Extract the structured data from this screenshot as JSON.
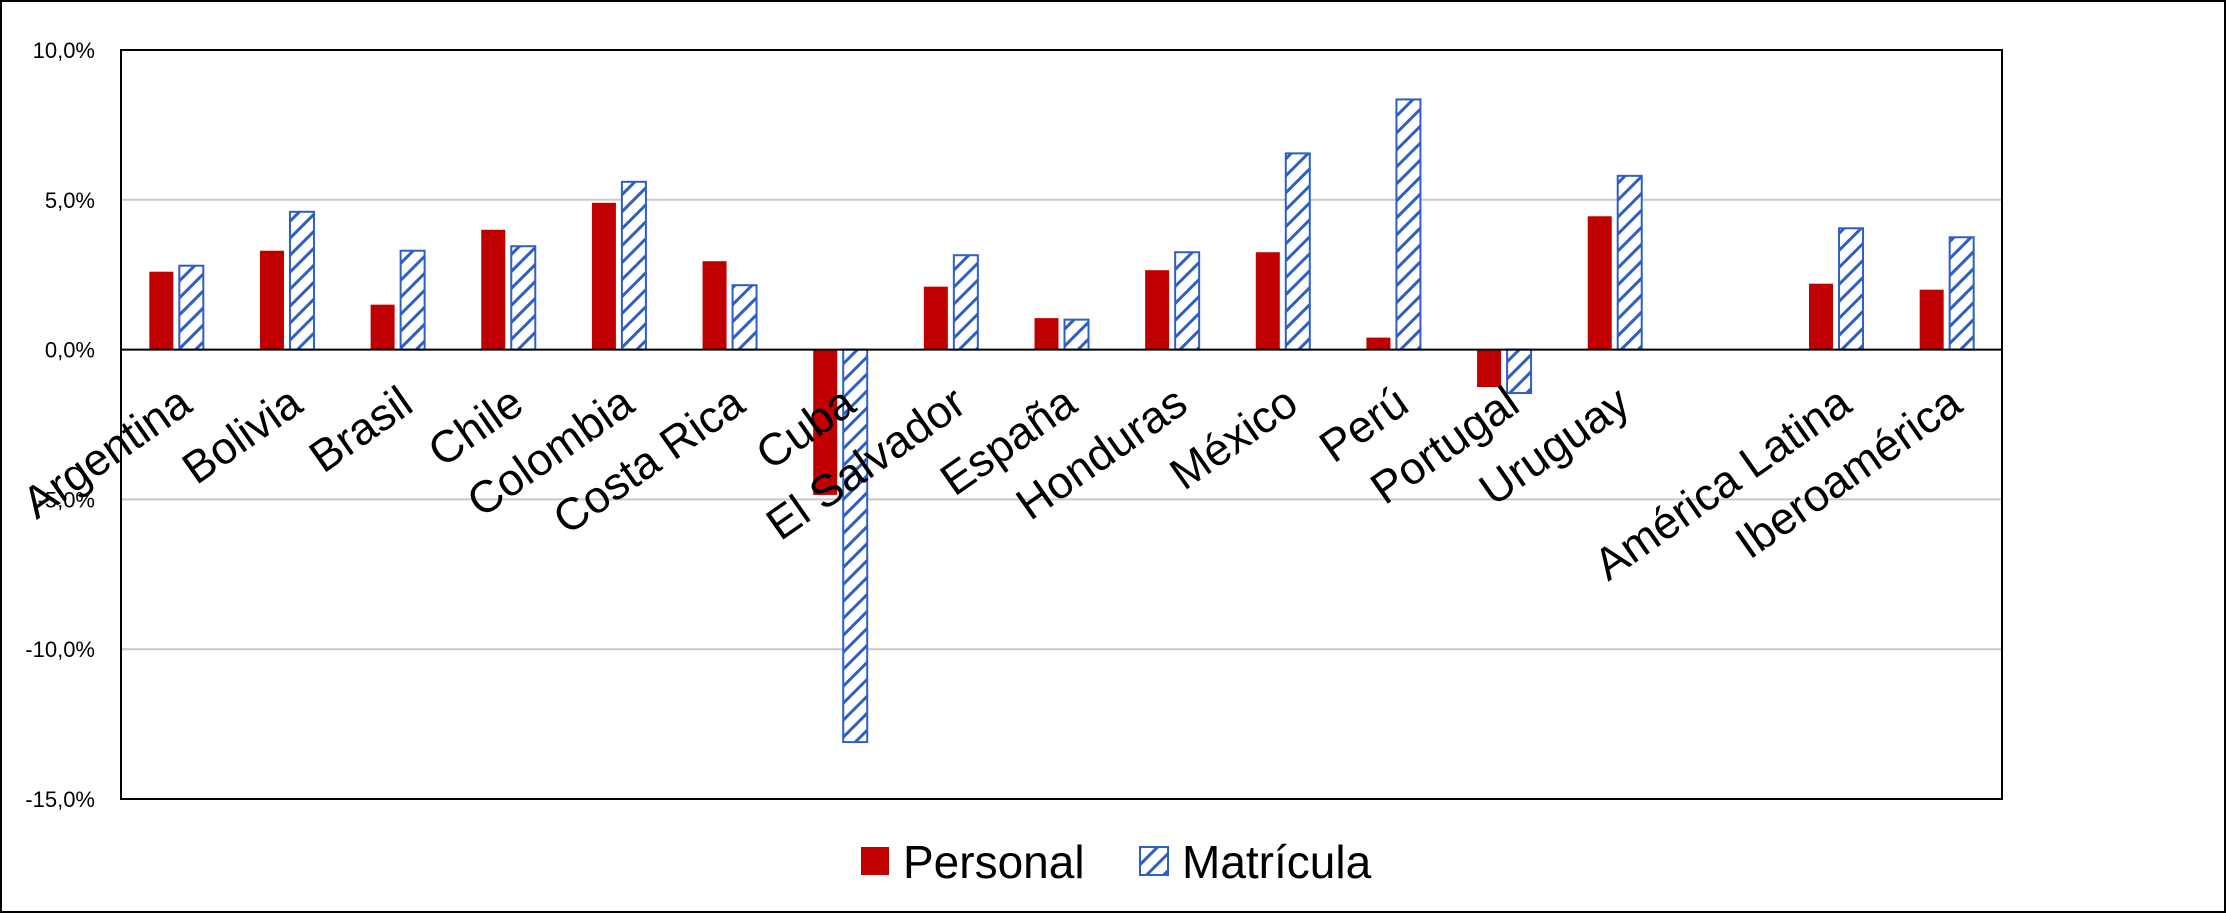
{
  "chart_data": {
    "type": "bar",
    "categories": [
      "Argentina",
      "Bolivia",
      "Brasil",
      "Chile",
      "Colombia",
      "Costa Rica",
      "Cuba",
      "El Salvador",
      "España",
      "Honduras",
      "México",
      "Perú",
      "Portugal",
      "Uruguay",
      "",
      "América Latina",
      "Iberoamérica"
    ],
    "series": [
      {
        "name": "Personal",
        "color": "#c00000",
        "pattern": "solid",
        "values": [
          2.6,
          3.3,
          1.5,
          4.0,
          4.9,
          2.95,
          -4.85,
          2.1,
          1.05,
          2.65,
          3.25,
          0.4,
          -1.25,
          4.45,
          null,
          2.2,
          2.0
        ]
      },
      {
        "name": "Matrícula",
        "color": "#2f5fc4",
        "pattern": "diagonal-hatch",
        "values": [
          2.8,
          4.6,
          3.3,
          3.45,
          5.6,
          2.15,
          -13.1,
          3.15,
          1.0,
          3.25,
          6.55,
          8.35,
          -1.45,
          5.8,
          null,
          4.05,
          3.75
        ]
      }
    ],
    "y_tick_labels": [
      "10,0%",
      "5,0%",
      "0,0%",
      "-5,0%",
      "-10,0%",
      "-15,0%"
    ],
    "y_tick_values": [
      10,
      5,
      0,
      -5,
      -10,
      -15
    ],
    "ylim": [
      -15,
      10
    ],
    "title": "",
    "xlabel": "",
    "ylabel": "",
    "grid": true,
    "legend_position": "bottom-center"
  },
  "legend": {
    "items": [
      {
        "label": "Personal",
        "swatch": "solid"
      },
      {
        "label": "Matrícula",
        "swatch": "hatch"
      }
    ]
  }
}
